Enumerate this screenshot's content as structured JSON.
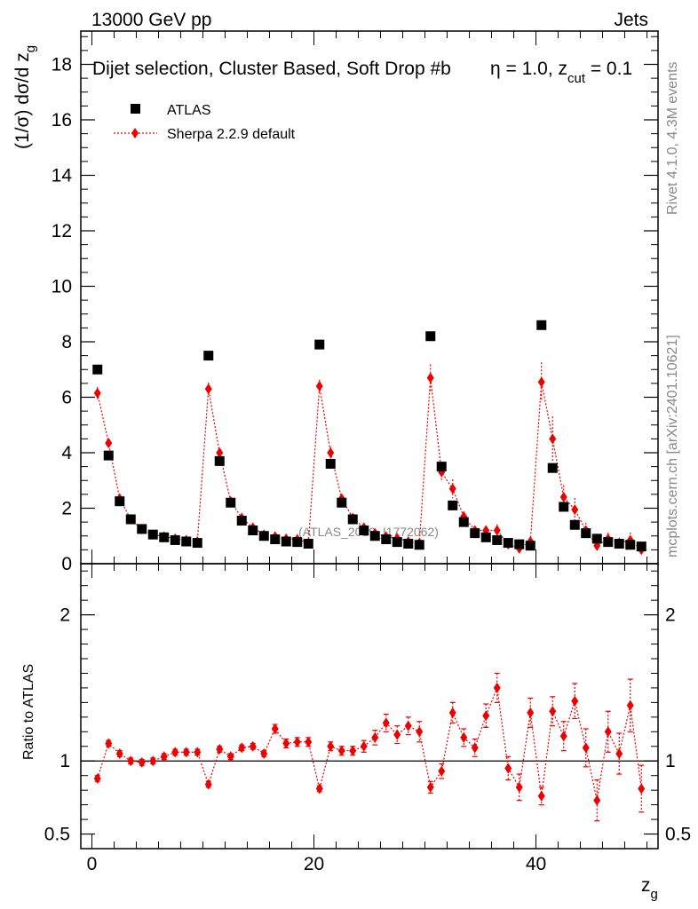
{
  "header": {
    "left": "13000 GeV pp",
    "right": "Jets"
  },
  "side_labels": {
    "rivet": "Rivet 4.1.0,  4.3M events",
    "mcplots": "mcplots.cern.ch [arXiv:2401.10621]"
  },
  "chart_data": {
    "type": "scatter",
    "title": "Dijet selection, Cluster Based, Soft Drop #b",
    "title_tail": {
      "eta": "η",
      "beta_text": " = 1.0, z",
      "sub": "cut",
      "tail": " = 0.1"
    },
    "watermark": "(ATLAS_2019_I1772062)",
    "xlabel": "z",
    "xlabel_sub": "g",
    "ylabel_main": "(1/σ) dσ/d z",
    "ylabel_main_sub": "g",
    "ylabel_ratio": "Ratio to ATLAS",
    "xlim": [
      -1,
      51
    ],
    "ylim_main": [
      0,
      19.2
    ],
    "ylim_ratio": [
      0.4,
      2.35
    ],
    "x_ticks": [
      0,
      20,
      40
    ],
    "y_ticks_main": [
      0,
      2,
      4,
      6,
      8,
      10,
      12,
      14,
      16,
      18
    ],
    "y_ticks_ratio": [
      0.5,
      1,
      2
    ],
    "legend_position": "top-left",
    "legend": [
      "ATLAS",
      "Sherpa 2.2.9 default"
    ],
    "series": [
      {
        "name": "ATLAS",
        "x": [
          0.5,
          1.5,
          2.5,
          3.5,
          4.5,
          5.5,
          6.5,
          7.5,
          8.5,
          9.5,
          10.5,
          11.5,
          12.5,
          13.5,
          14.5,
          15.5,
          16.5,
          17.5,
          18.5,
          19.5,
          20.5,
          21.5,
          22.5,
          23.5,
          24.5,
          25.5,
          26.5,
          27.5,
          28.5,
          29.5,
          30.5,
          31.5,
          32.5,
          33.5,
          34.5,
          35.5,
          36.5,
          37.5,
          38.5,
          39.5,
          40.5,
          41.5,
          42.5,
          43.5,
          44.5,
          45.5,
          46.5,
          47.5,
          48.5,
          49.5
        ],
        "values": [
          7.0,
          3.9,
          2.25,
          1.6,
          1.25,
          1.05,
          0.95,
          0.85,
          0.8,
          0.75,
          7.5,
          3.7,
          2.2,
          1.55,
          1.2,
          1.0,
          0.88,
          0.8,
          0.78,
          0.72,
          7.9,
          3.6,
          2.2,
          1.6,
          1.2,
          1.0,
          0.88,
          0.78,
          0.72,
          0.68,
          8.2,
          3.5,
          2.1,
          1.5,
          1.1,
          0.95,
          0.85,
          0.75,
          0.7,
          0.65,
          8.6,
          3.45,
          2.05,
          1.4,
          1.1,
          0.9,
          0.78,
          0.72,
          0.68,
          0.62
        ]
      },
      {
        "name": "Sherpa 2.2.9 default",
        "x": [
          0.5,
          1.5,
          2.5,
          3.5,
          4.5,
          5.5,
          6.5,
          7.5,
          8.5,
          9.5,
          10.5,
          11.5,
          12.5,
          13.5,
          14.5,
          15.5,
          16.5,
          17.5,
          18.5,
          19.5,
          20.5,
          21.5,
          22.5,
          23.5,
          24.5,
          25.5,
          26.5,
          27.5,
          28.5,
          29.5,
          30.5,
          31.5,
          32.5,
          33.5,
          34.5,
          35.5,
          36.5,
          37.5,
          38.5,
          39.5,
          40.5,
          41.5,
          42.5,
          43.5,
          44.5,
          45.5,
          46.5,
          47.5,
          48.5,
          49.5
        ],
        "values": [
          6.15,
          4.35,
          2.35,
          1.6,
          1.25,
          1.05,
          0.98,
          0.9,
          0.85,
          0.8,
          6.3,
          4.0,
          2.25,
          1.65,
          1.3,
          1.05,
          0.98,
          0.9,
          0.88,
          0.75,
          6.4,
          4.0,
          2.35,
          1.65,
          1.3,
          1.1,
          0.98,
          0.92,
          0.8,
          0.75,
          6.7,
          3.3,
          2.7,
          1.7,
          1.2,
          1.2,
          1.2,
          0.7,
          0.55,
          0.8,
          6.55,
          4.5,
          2.4,
          1.95,
          1.2,
          0.65,
          0.9,
          0.75,
          0.85,
          0.5
        ],
        "ratio": [
          0.88,
          1.12,
          1.05,
          1.0,
          0.99,
          1.0,
          1.03,
          1.06,
          1.06,
          1.06,
          0.84,
          1.08,
          1.03,
          1.09,
          1.1,
          1.05,
          1.22,
          1.12,
          1.13,
          1.13,
          0.81,
          1.1,
          1.07,
          1.07,
          1.1,
          1.16,
          1.26,
          1.18,
          1.24,
          1.2,
          0.82,
          0.93,
          1.33,
          1.16,
          1.09,
          1.31,
          1.5,
          0.95,
          0.82,
          1.33,
          0.76,
          1.34,
          1.17,
          1.41,
          1.09,
          0.73,
          1.2,
          1.05,
          1.38,
          0.81
        ],
        "ratio_err": [
          0.02,
          0.02,
          0.02,
          0.02,
          0.02,
          0.02,
          0.02,
          0.02,
          0.02,
          0.02,
          0.02,
          0.02,
          0.02,
          0.02,
          0.02,
          0.02,
          0.03,
          0.03,
          0.03,
          0.03,
          0.02,
          0.03,
          0.03,
          0.03,
          0.04,
          0.05,
          0.06,
          0.06,
          0.06,
          0.07,
          0.04,
          0.05,
          0.07,
          0.06,
          0.06,
          0.08,
          0.1,
          0.08,
          0.09,
          0.1,
          0.06,
          0.1,
          0.1,
          0.12,
          0.13,
          0.14,
          0.14,
          0.14,
          0.18,
          0.16
        ]
      }
    ]
  }
}
